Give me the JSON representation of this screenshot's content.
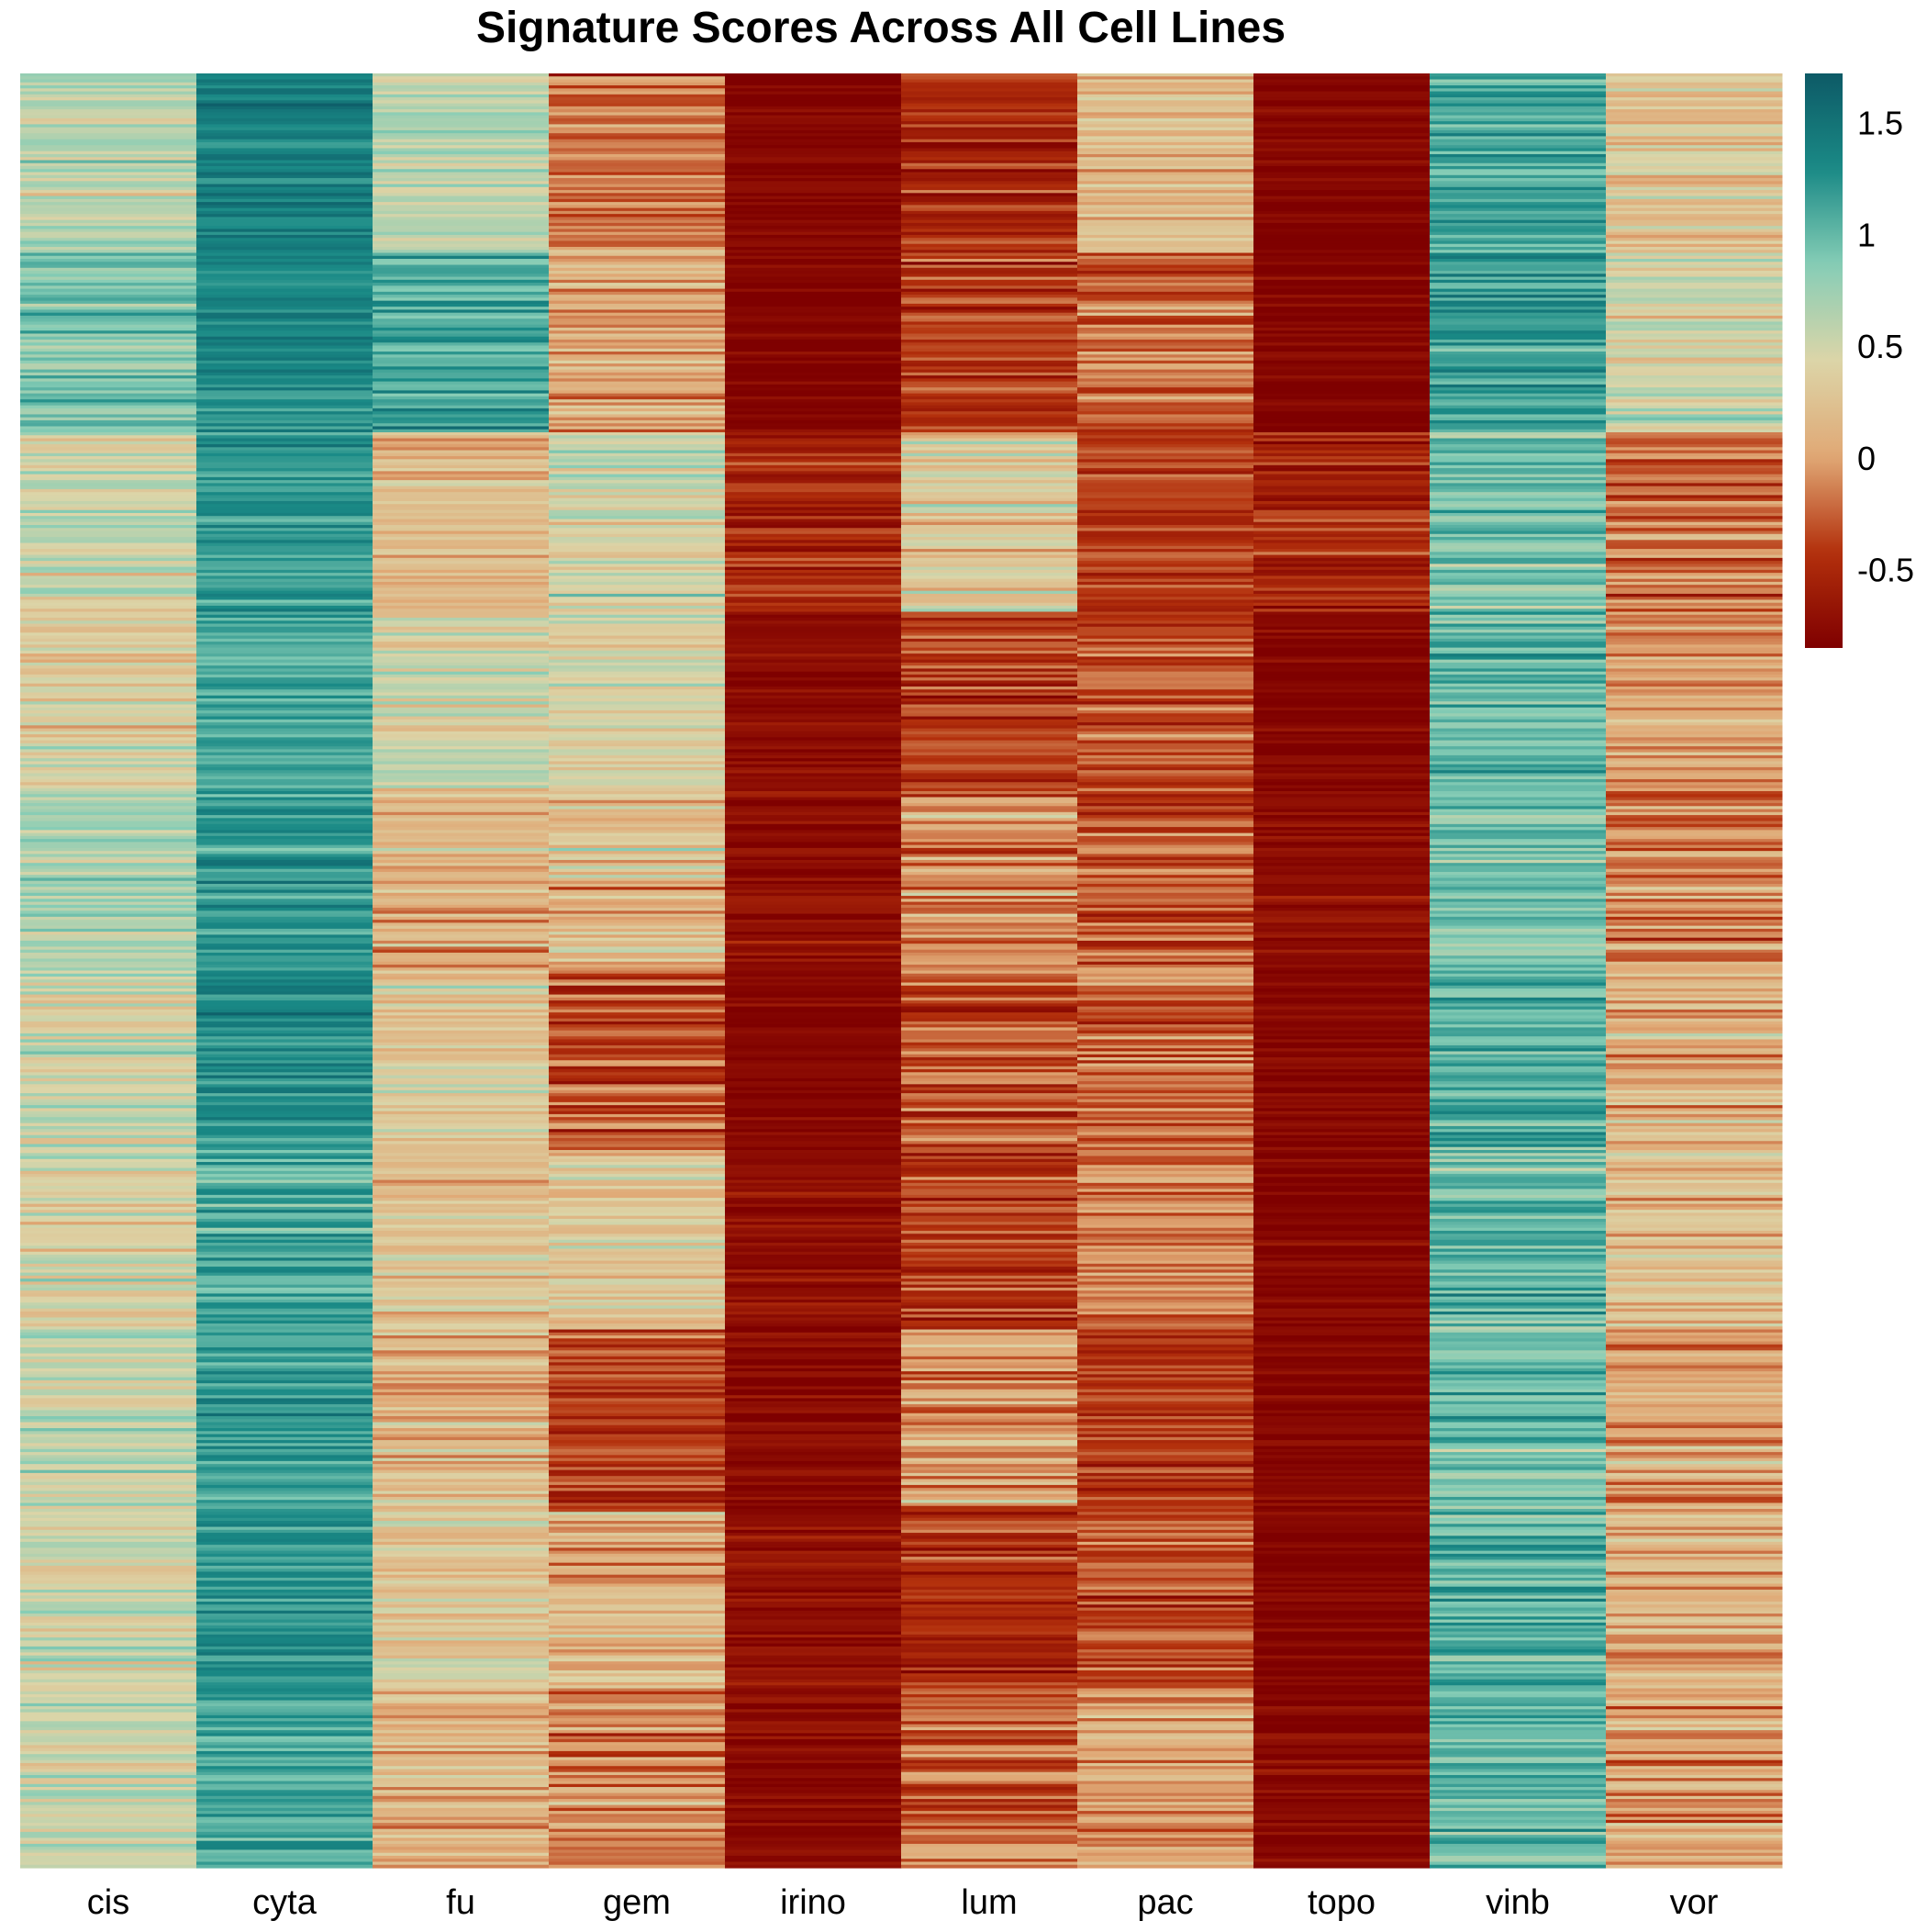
{
  "chart_data": {
    "type": "heatmap",
    "title": "Signature Scores Across All Cell Lines",
    "columns": [
      "cis",
      "cyta",
      "fu",
      "gem",
      "irino",
      "lum",
      "pac",
      "topo",
      "vinb",
      "vor"
    ],
    "row_labels_shown": false,
    "value_range": [
      -0.85,
      1.72
    ],
    "colorbar": {
      "ticks": [
        1.5,
        1,
        0.5,
        0,
        -0.5
      ],
      "tick_labels": [
        "1.5",
        "1",
        "0.5",
        "0",
        "-0.5"
      ],
      "colors": [
        "#7f0000",
        "#b3300c",
        "#e0a875",
        "#dcd5a8",
        "#86cdb6",
        "#1a8a86",
        "#0d5a66"
      ],
      "position": "right"
    },
    "column_profiles": [
      {
        "name": "cis",
        "bands": [
          [
            0.6,
            0.35
          ],
          [
            0.9,
            0.3
          ],
          [
            0.5,
            0.35
          ],
          [
            0.4,
            0.35
          ],
          [
            0.7,
            0.3
          ],
          [
            0.5,
            0.35
          ],
          [
            0.45,
            0.35
          ],
          [
            0.55,
            0.35
          ],
          [
            0.5,
            0.35
          ],
          [
            0.5,
            0.35
          ]
        ]
      },
      {
        "name": "cyta",
        "bands": [
          [
            1.35,
            0.25
          ],
          [
            1.3,
            0.25
          ],
          [
            1.2,
            0.25
          ],
          [
            1.1,
            0.25
          ],
          [
            1.2,
            0.3
          ],
          [
            1.3,
            0.3
          ],
          [
            1.1,
            0.3
          ],
          [
            1.2,
            0.3
          ],
          [
            1.25,
            0.3
          ],
          [
            1.1,
            0.3
          ]
        ]
      },
      {
        "name": "fu",
        "bands": [
          [
            0.6,
            0.3
          ],
          [
            1.1,
            0.35
          ],
          [
            0.2,
            0.35
          ],
          [
            0.5,
            0.35
          ],
          [
            0.1,
            0.35
          ],
          [
            0.3,
            0.4
          ],
          [
            0.25,
            0.35
          ],
          [
            0.2,
            0.35
          ],
          [
            0.35,
            0.35
          ],
          [
            0.15,
            0.35
          ]
        ]
      },
      {
        "name": "gem",
        "bands": [
          [
            -0.2,
            0.4
          ],
          [
            0.0,
            0.4
          ],
          [
            0.5,
            0.35
          ],
          [
            0.4,
            0.35
          ],
          [
            0.2,
            0.45
          ],
          [
            -0.3,
            0.4
          ],
          [
            0.3,
            0.4
          ],
          [
            -0.4,
            0.35
          ],
          [
            0.1,
            0.45
          ],
          [
            -0.1,
            0.4
          ]
        ]
      },
      {
        "name": "irino",
        "bands": [
          [
            -0.8,
            0.15
          ],
          [
            -0.8,
            0.15
          ],
          [
            -0.5,
            0.3
          ],
          [
            -0.75,
            0.15
          ],
          [
            -0.7,
            0.2
          ],
          [
            -0.8,
            0.15
          ],
          [
            -0.7,
            0.2
          ],
          [
            -0.75,
            0.2
          ],
          [
            -0.7,
            0.2
          ],
          [
            -0.75,
            0.2
          ]
        ]
      },
      {
        "name": "lum",
        "bands": [
          [
            -0.5,
            0.3
          ],
          [
            -0.4,
            0.3
          ],
          [
            0.3,
            0.4
          ],
          [
            -0.4,
            0.35
          ],
          [
            -0.1,
            0.4
          ],
          [
            -0.3,
            0.4
          ],
          [
            -0.4,
            0.35
          ],
          [
            0.0,
            0.4
          ],
          [
            -0.5,
            0.3
          ],
          [
            -0.2,
            0.4
          ]
        ]
      },
      {
        "name": "pac",
        "bands": [
          [
            0.2,
            0.4
          ],
          [
            -0.2,
            0.4
          ],
          [
            -0.4,
            0.3
          ],
          [
            -0.3,
            0.35
          ],
          [
            -0.3,
            0.35
          ],
          [
            -0.2,
            0.35
          ],
          [
            -0.1,
            0.35
          ],
          [
            -0.4,
            0.3
          ],
          [
            -0.3,
            0.35
          ],
          [
            0.0,
            0.35
          ]
        ]
      },
      {
        "name": "topo",
        "bands": [
          [
            -0.8,
            0.15
          ],
          [
            -0.8,
            0.15
          ],
          [
            -0.5,
            0.35
          ],
          [
            -0.8,
            0.15
          ],
          [
            -0.75,
            0.2
          ],
          [
            -0.8,
            0.15
          ],
          [
            -0.8,
            0.15
          ],
          [
            -0.8,
            0.15
          ],
          [
            -0.8,
            0.15
          ],
          [
            -0.78,
            0.2
          ]
        ]
      },
      {
        "name": "vinb",
        "bands": [
          [
            1.1,
            0.3
          ],
          [
            1.2,
            0.3
          ],
          [
            0.9,
            0.35
          ],
          [
            1.0,
            0.35
          ],
          [
            0.9,
            0.35
          ],
          [
            1.1,
            0.35
          ],
          [
            1.0,
            0.35
          ],
          [
            0.95,
            0.35
          ],
          [
            1.05,
            0.35
          ],
          [
            1.0,
            0.35
          ]
        ]
      },
      {
        "name": "vor",
        "bands": [
          [
            0.3,
            0.4
          ],
          [
            0.5,
            0.4
          ],
          [
            -0.2,
            0.4
          ],
          [
            0.0,
            0.4
          ],
          [
            -0.1,
            0.4
          ],
          [
            0.1,
            0.4
          ],
          [
            0.2,
            0.4
          ],
          [
            0.0,
            0.4
          ],
          [
            0.1,
            0.4
          ],
          [
            0.0,
            0.4
          ]
        ]
      }
    ]
  }
}
